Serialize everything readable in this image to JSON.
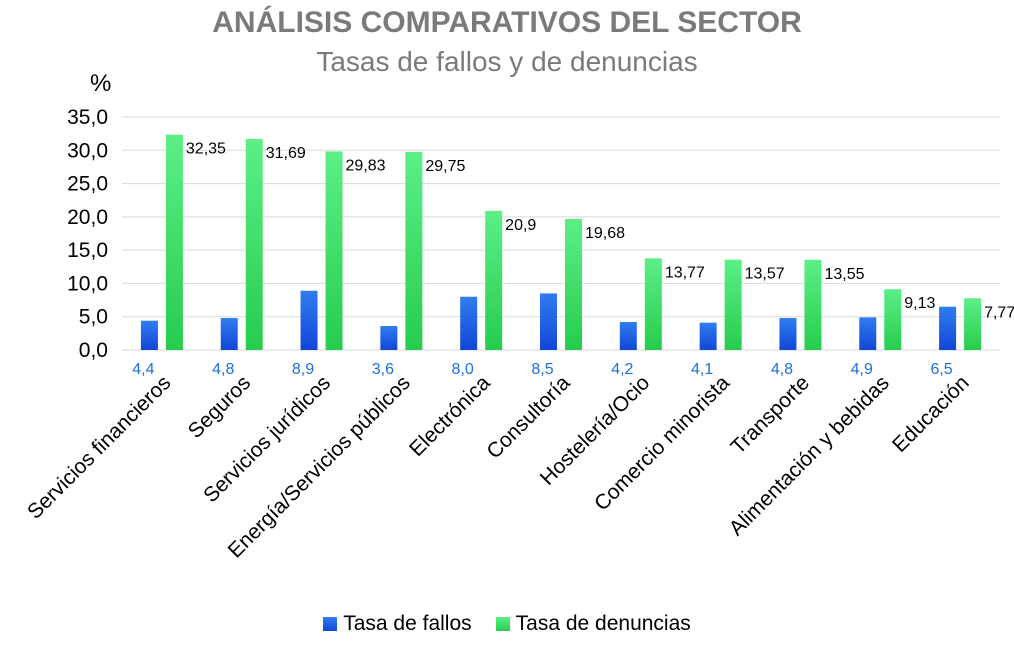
{
  "chart_data": {
    "type": "bar",
    "title": "ANÁLISIS COMPARATIVOS DEL SECTOR",
    "subtitle": "Tasas de fallos y de denuncias",
    "ylabel": "%",
    "ylim": [
      0,
      35
    ],
    "yticks": [
      "0,0",
      "5,0",
      "10,0",
      "15,0",
      "20,0",
      "25,0",
      "30,0",
      "35,0"
    ],
    "grid": true,
    "legend_position": "bottom",
    "categories": [
      "Servicios financieros",
      "Seguros",
      "Servicios jurídicos",
      "Energía/Servicios públicos",
      "Electrónica",
      "Consultoría",
      "Hostelería/Ocio",
      "Comercio minorista",
      "Transporte",
      "Alimentación y bebidas",
      "Educación"
    ],
    "series": [
      {
        "name": "Tasa de fallos",
        "color": "#1f6fe0",
        "values": [
          4.4,
          4.8,
          8.9,
          3.6,
          8.0,
          8.5,
          4.2,
          4.1,
          4.8,
          4.9,
          6.5
        ],
        "labels": [
          "4,4",
          "4,8",
          "8,9",
          "3,6",
          "8,0",
          "8,5",
          "4,2",
          "4,1",
          "4,8",
          "4,9",
          "6,5"
        ]
      },
      {
        "name": "Tasa de denuncias",
        "color": "#3fe06a",
        "values": [
          32.35,
          31.69,
          29.83,
          29.75,
          20.9,
          19.68,
          13.77,
          13.57,
          13.55,
          9.13,
          7.77
        ],
        "labels": [
          "32,35",
          "31,69",
          "29,83",
          "29,75",
          "20,9",
          "19,68",
          "13,77",
          "13,57",
          "13,55",
          "9,13",
          "7,77"
        ]
      }
    ]
  }
}
